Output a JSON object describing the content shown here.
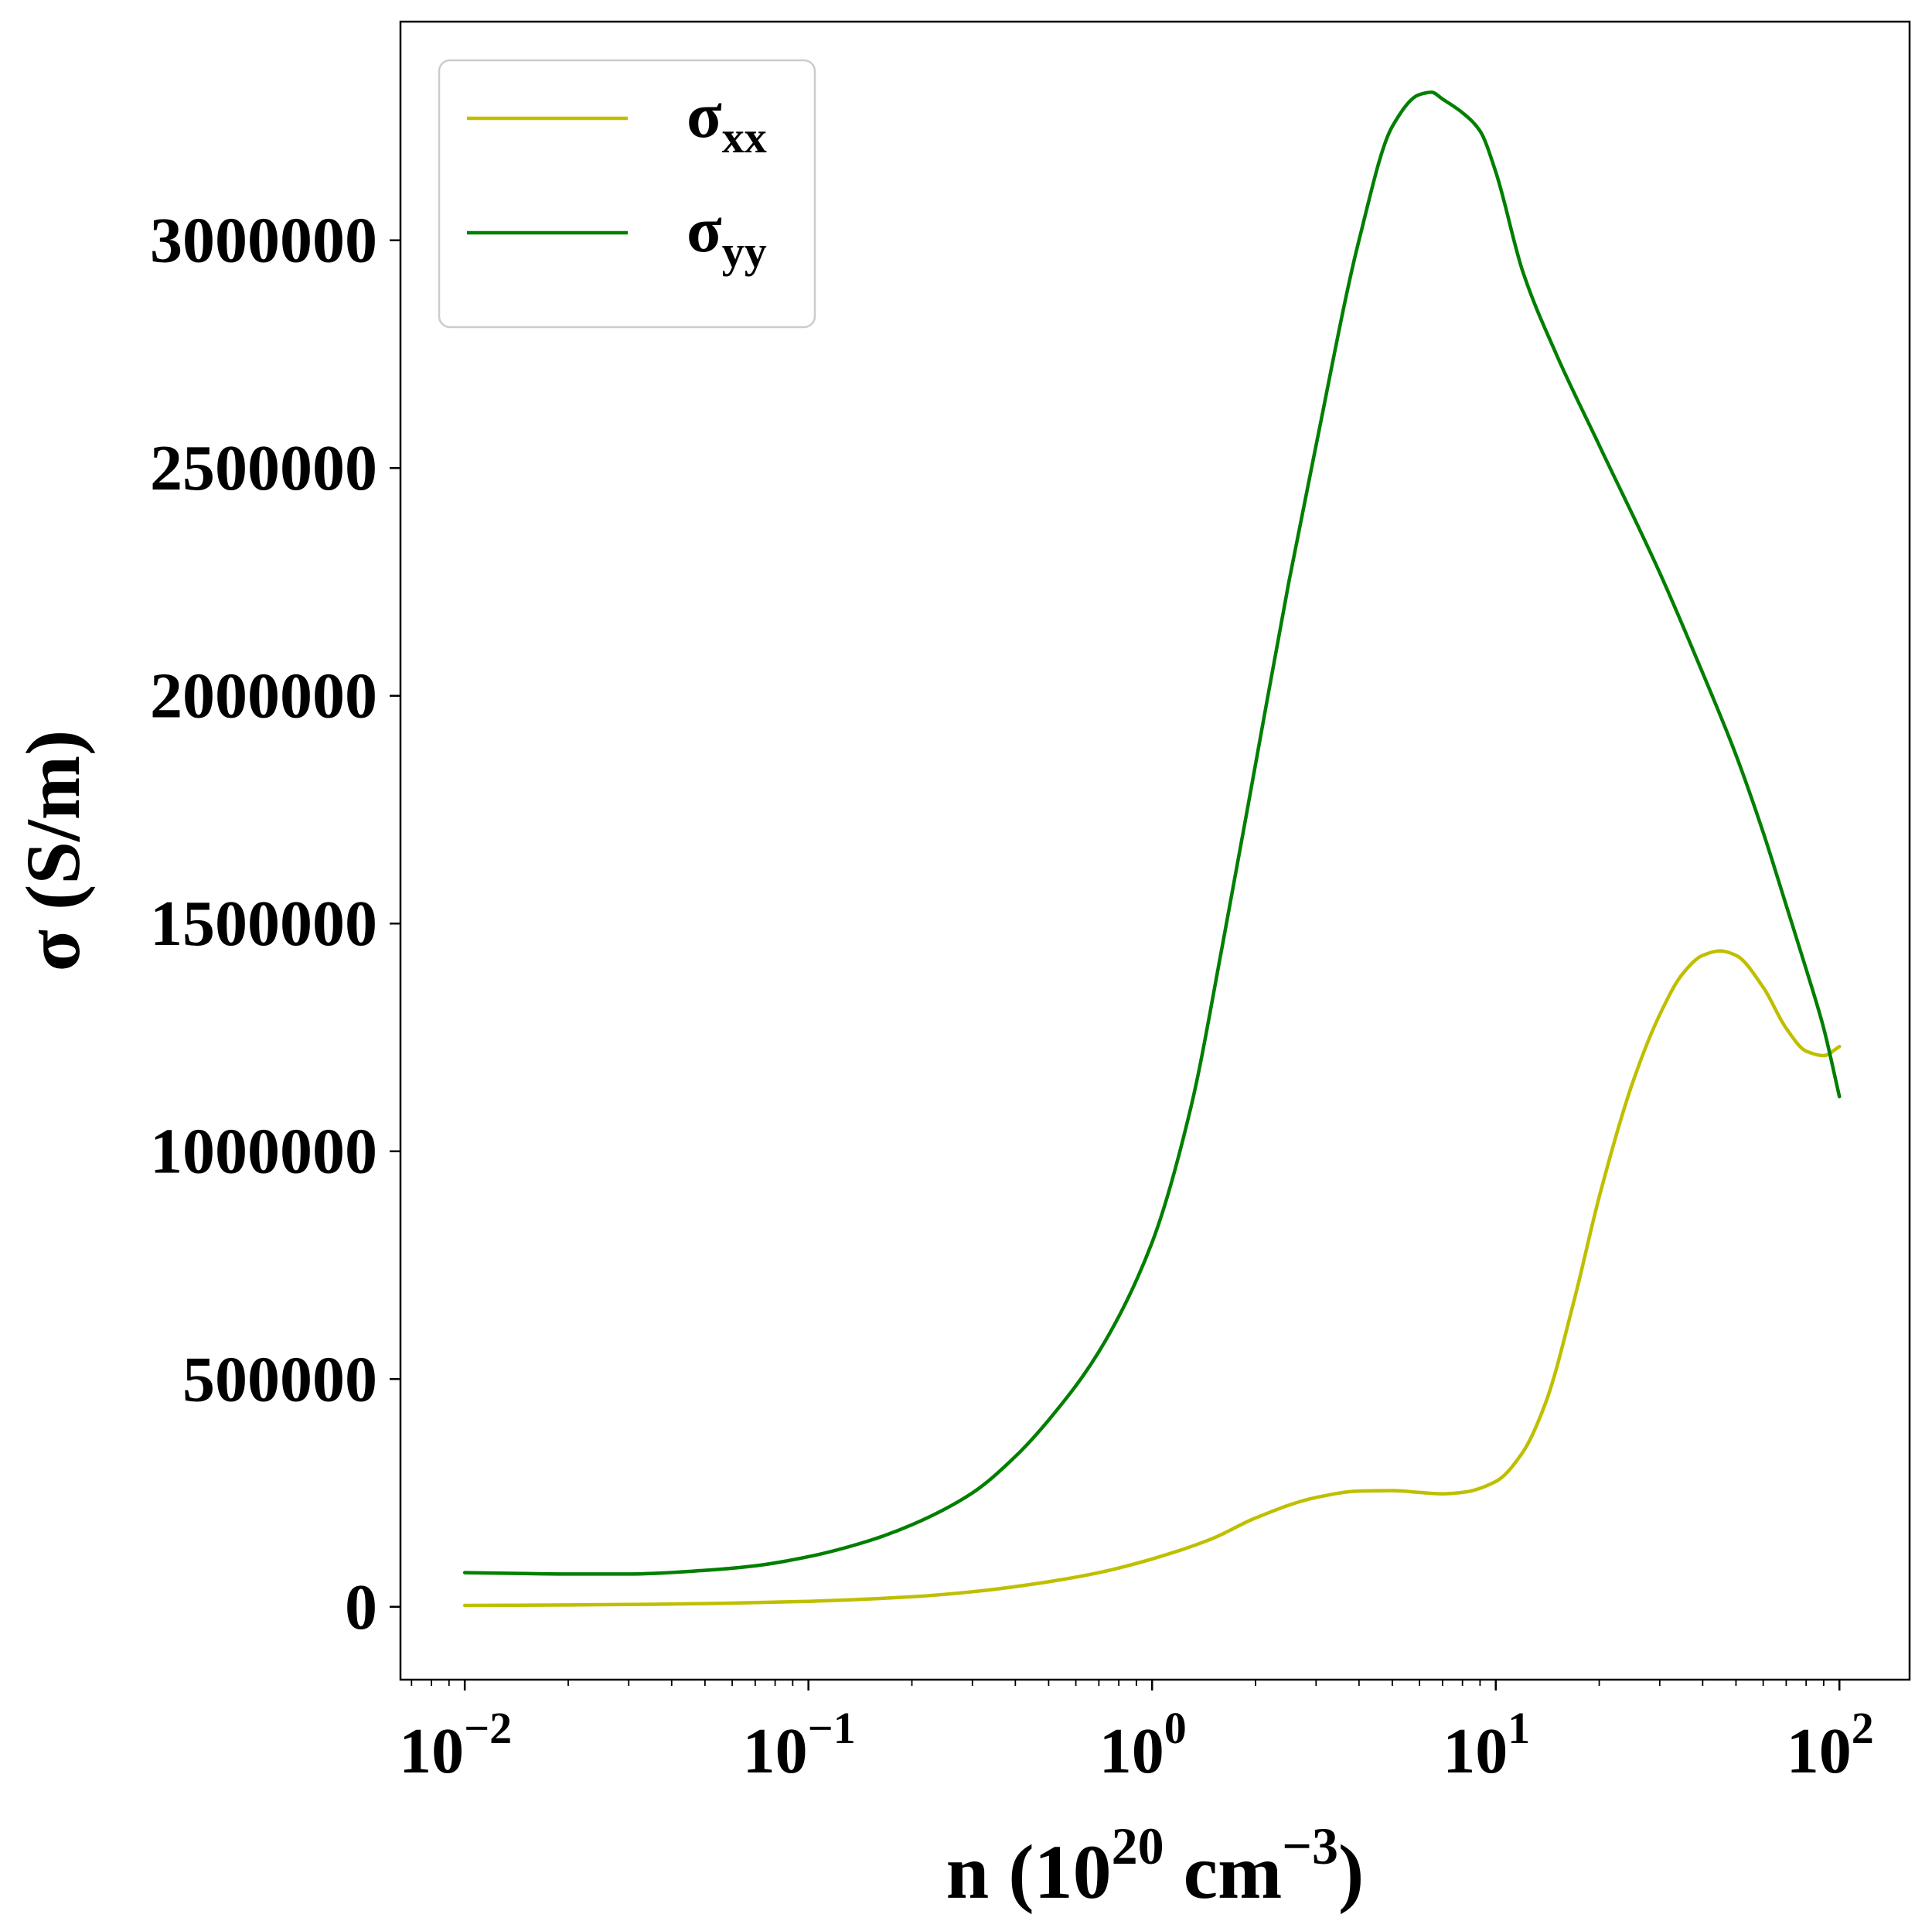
{
  "chart_data": {
    "type": "line",
    "xscale": "log",
    "xlabel": {
      "base": "n (10",
      "sup1": "20",
      "mid": " cm",
      "sup2": "−3",
      "end": ")"
    },
    "ylabel": "σ (S/m)",
    "xlim": [
      0.0065,
      160
    ],
    "ylim": [
      -160000,
      3480000
    ],
    "grid": false,
    "legend_position": "top-left",
    "x_ticks": [
      {
        "value": 0.01,
        "base": "10",
        "exp": "−2"
      },
      {
        "value": 0.1,
        "base": "10",
        "exp": "−1"
      },
      {
        "value": 1,
        "base": "10",
        "exp": "0"
      },
      {
        "value": 10,
        "base": "10",
        "exp": "1"
      },
      {
        "value": 100,
        "base": "10",
        "exp": "2"
      }
    ],
    "y_ticks": [
      {
        "value": 0,
        "label": "0"
      },
      {
        "value": 500000,
        "label": "500000"
      },
      {
        "value": 1000000,
        "label": "1000000"
      },
      {
        "value": 1500000,
        "label": "1500000"
      },
      {
        "value": 2000000,
        "label": "2000000"
      },
      {
        "value": 2500000,
        "label": "2500000"
      },
      {
        "value": 3000000,
        "label": "3000000"
      }
    ],
    "series": [
      {
        "name": "σxx",
        "legend_base": "σ",
        "legend_sub": "xx",
        "color": "#bfbf00",
        "points": [
          [
            0.01,
            3000
          ],
          [
            0.02,
            4000
          ],
          [
            0.05,
            7000
          ],
          [
            0.1,
            12000
          ],
          [
            0.2,
            22000
          ],
          [
            0.3,
            33000
          ],
          [
            0.5,
            55000
          ],
          [
            0.7,
            75000
          ],
          [
            1.0,
            105000
          ],
          [
            1.5,
            150000
          ],
          [
            2.0,
            195000
          ],
          [
            3.0,
            240000
          ],
          [
            4.0,
            254000
          ],
          [
            5.0,
            255000
          ],
          [
            6.0,
            251000
          ],
          [
            7.0,
            248000
          ],
          [
            8.0,
            251000
          ],
          [
            10.0,
            275000
          ],
          [
            12.0,
            340000
          ],
          [
            14.0,
            450000
          ],
          [
            17.0,
            680000
          ],
          [
            20.0,
            900000
          ],
          [
            25.0,
            1150000
          ],
          [
            30.0,
            1300000
          ],
          [
            35.0,
            1390000
          ],
          [
            40.0,
            1430000
          ],
          [
            45.0,
            1440000
          ],
          [
            50.0,
            1430000
          ],
          [
            60.0,
            1360000
          ],
          [
            70.0,
            1270000
          ],
          [
            80.0,
            1220000
          ],
          [
            90.0,
            1210000
          ],
          [
            100.0,
            1230000
          ]
        ]
      },
      {
        "name": "σyy",
        "legend_base": "σ",
        "legend_sub": "yy",
        "color": "#007f00",
        "points": [
          [
            0.01,
            75000
          ],
          [
            0.015,
            73000
          ],
          [
            0.02,
            72000
          ],
          [
            0.03,
            72000
          ],
          [
            0.05,
            80000
          ],
          [
            0.07,
            90000
          ],
          [
            0.1,
            110000
          ],
          [
            0.15,
            145000
          ],
          [
            0.2,
            180000
          ],
          [
            0.3,
            250000
          ],
          [
            0.4,
            330000
          ],
          [
            0.5,
            410000
          ],
          [
            0.7,
            560000
          ],
          [
            1.0,
            800000
          ],
          [
            1.3,
            1100000
          ],
          [
            1.6,
            1450000
          ],
          [
            2.0,
            1850000
          ],
          [
            2.5,
            2250000
          ],
          [
            3.0,
            2550000
          ],
          [
            4.0,
            3000000
          ],
          [
            5.0,
            3250000
          ],
          [
            6.0,
            3320000
          ],
          [
            6.5,
            3325000
          ],
          [
            7.0,
            3310000
          ],
          [
            8.0,
            3280000
          ],
          [
            9.0,
            3240000
          ],
          [
            10.0,
            3150000
          ],
          [
            12.0,
            2930000
          ],
          [
            15.0,
            2750000
          ],
          [
            20.0,
            2550000
          ],
          [
            30.0,
            2270000
          ],
          [
            40.0,
            2050000
          ],
          [
            50.0,
            1870000
          ],
          [
            60.0,
            1700000
          ],
          [
            70.0,
            1540000
          ],
          [
            80.0,
            1400000
          ],
          [
            90.0,
            1270000
          ],
          [
            100.0,
            1120000
          ]
        ]
      }
    ]
  }
}
